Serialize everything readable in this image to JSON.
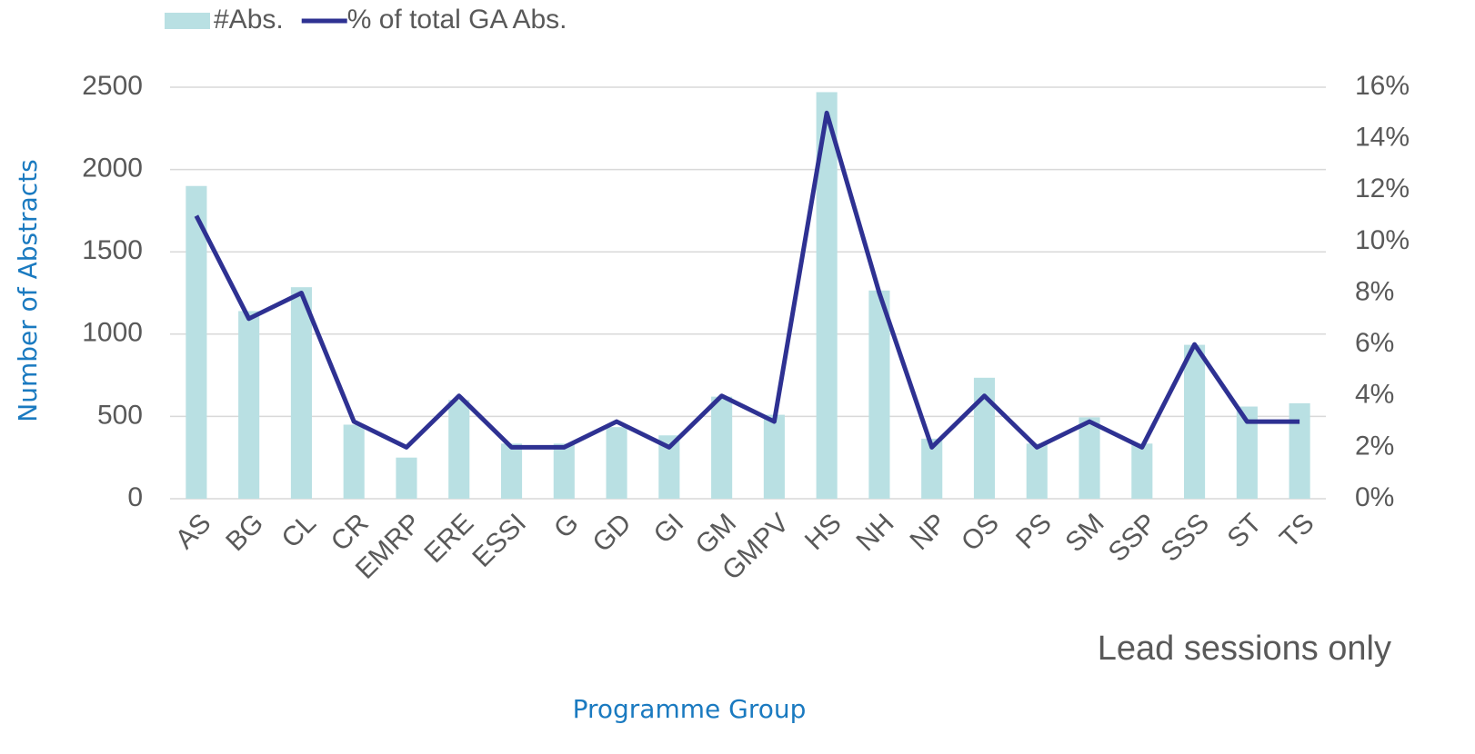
{
  "chart_data": {
    "type": "bar_line",
    "y_axis_label": "Number of Abstracts",
    "x_axis_label": "Programme Group",
    "annotation": "Lead sessions only",
    "categories": [
      "AS",
      "BG",
      "CL",
      "CR",
      "EMRP",
      "ERE",
      "ESSI",
      "G",
      "GD",
      "GI",
      "GM",
      "GMPV",
      "HS",
      "NH",
      "NP",
      "OS",
      "PS",
      "SM",
      "SSP",
      "SSS",
      "ST",
      "TS"
    ],
    "series": [
      {
        "name": "#Abs.",
        "type": "bar",
        "color": "#b9e0e3",
        "values": [
          1900,
          1140,
          1285,
          450,
          250,
          600,
          335,
          335,
          435,
          385,
          620,
          510,
          2470,
          1265,
          365,
          735,
          335,
          495,
          335,
          935,
          560,
          580
        ]
      },
      {
        "name": "% of total GA Abs.",
        "type": "line",
        "axis": "y2",
        "color": "#2e3192",
        "values": [
          11,
          7,
          8,
          3,
          2,
          4,
          2,
          2,
          3,
          2,
          4,
          3,
          15,
          8,
          2,
          4,
          2,
          3,
          2,
          6,
          3,
          3
        ]
      }
    ],
    "ylim": [
      0,
      2500
    ],
    "yticks": [
      0,
      500,
      1000,
      1500,
      2000,
      2500
    ],
    "y2lim": [
      0,
      16
    ],
    "y2ticks": [
      {
        "value": 0,
        "label": "0%"
      },
      {
        "value": 2,
        "label": "2%"
      },
      {
        "value": 4,
        "label": "4%"
      },
      {
        "value": 6,
        "label": "6%"
      },
      {
        "value": 8,
        "label": "8%"
      },
      {
        "value": 10,
        "label": "10%"
      },
      {
        "value": 12,
        "label": "12%"
      },
      {
        "value": 14,
        "label": "14%"
      },
      {
        "value": 16,
        "label": "16%"
      }
    ],
    "grid": true,
    "legend": "top-left"
  }
}
